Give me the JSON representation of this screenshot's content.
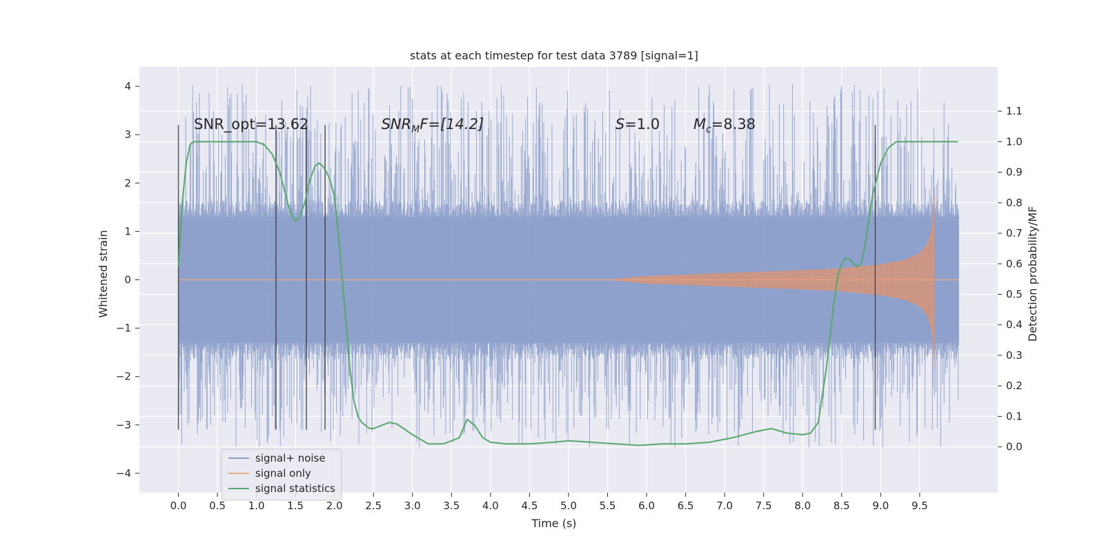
{
  "chart_data": {
    "type": "line",
    "title": "stats at each timestep for test data 3789 [signal=1]",
    "xlabel": "Time (s)",
    "ylabel": "Whitened strain",
    "y2label": "Detection probability/MF",
    "xlim": [
      -0.5,
      10.5
    ],
    "ylim": [
      -4.4,
      4.4
    ],
    "y2lim": [
      -0.15,
      1.245
    ],
    "x_ticks": [
      0.0,
      0.5,
      1.0,
      1.5,
      2.0,
      2.5,
      3.0,
      3.5,
      4.0,
      4.5,
      5.0,
      5.5,
      6.0,
      6.5,
      7.0,
      7.5,
      8.0,
      8.5,
      9.0,
      9.5
    ],
    "x_tick_labels": [
      "0.0",
      "0.5",
      "1.0",
      "1.5",
      "2.0",
      "2.5",
      "3.0",
      "3.5",
      "4.0",
      "4.5",
      "5.0",
      "5.5",
      "6.0",
      "6.5",
      "7.0",
      "7.5",
      "8.0",
      "8.5",
      "9.0",
      "9.5"
    ],
    "y_ticks": [
      4,
      3,
      2,
      1,
      0,
      -1,
      -2,
      -3,
      -4
    ],
    "y_tick_labels": [
      "4",
      "3",
      "2",
      "1",
      "0",
      "−1",
      "−2",
      "−3",
      "−4"
    ],
    "y2_ticks": [
      1.1,
      1.0,
      0.9,
      0.8,
      0.7,
      0.6,
      0.5,
      0.4,
      0.3,
      0.2,
      0.1,
      0.0
    ],
    "y2_tick_labels": [
      "1.1",
      "1.0",
      "0.9",
      "0.8",
      "0.7",
      "0.6",
      "0.5",
      "0.4",
      "0.3",
      "0.2",
      "0.1",
      "0.0"
    ],
    "grid": true,
    "legend_position": "bottom-left",
    "colors": {
      "noise": "#8da0cb",
      "signal": "#dd8452",
      "stats": "#55a868",
      "vline": "#3a3a3a",
      "plot_bg": "#eaeaf2",
      "grid": "#ffffff"
    },
    "series": [
      {
        "name": "signal+ noise",
        "axis": "left",
        "style": "noise-band",
        "x_range": [
          0.0,
          10.0
        ],
        "core_amplitude": 1.3,
        "peak_max": 4.05,
        "trough_min": -3.5
      },
      {
        "name": "signal only",
        "axis": "left",
        "style": "chirp",
        "envelope": {
          "x": [
            0.0,
            5.5,
            6.0,
            6.5,
            7.0,
            7.5,
            8.0,
            8.5,
            9.0,
            9.3,
            9.5,
            9.6,
            9.66,
            9.69
          ],
          "amp": [
            0.0,
            0.0,
            0.08,
            0.11,
            0.14,
            0.17,
            0.2,
            0.24,
            0.32,
            0.41,
            0.55,
            0.75,
            1.1,
            1.9
          ]
        },
        "merger_x": 9.69,
        "x_end": 10.0
      },
      {
        "name": "signal statistics",
        "axis": "right",
        "style": "line",
        "x": [
          0.0,
          0.05,
          0.1,
          0.15,
          0.2,
          0.3,
          0.5,
          0.7,
          0.9,
          1.0,
          1.1,
          1.2,
          1.3,
          1.4,
          1.45,
          1.5,
          1.55,
          1.62,
          1.68,
          1.75,
          1.8,
          1.85,
          1.9,
          1.95,
          2.0,
          2.05,
          2.1,
          2.15,
          2.2,
          2.25,
          2.3,
          2.35,
          2.4,
          2.45,
          2.5,
          2.6,
          2.7,
          2.8,
          3.0,
          3.2,
          3.4,
          3.6,
          3.7,
          3.8,
          3.9,
          4.0,
          4.2,
          4.5,
          4.8,
          5.0,
          5.3,
          5.6,
          5.9,
          6.2,
          6.5,
          6.8,
          7.1,
          7.4,
          7.6,
          7.8,
          8.0,
          8.1,
          8.2,
          8.3,
          8.4,
          8.45,
          8.5,
          8.55,
          8.6,
          8.65,
          8.7,
          8.75,
          8.8,
          8.85,
          8.9,
          9.0,
          9.1,
          9.2,
          9.3,
          9.5,
          9.7,
          9.9,
          9.99
        ],
        "y": [
          0.59,
          0.8,
          0.93,
          0.99,
          1.0,
          1.0,
          1.0,
          1.0,
          1.0,
          1.0,
          0.99,
          0.96,
          0.9,
          0.8,
          0.76,
          0.74,
          0.75,
          0.8,
          0.87,
          0.92,
          0.93,
          0.92,
          0.9,
          0.87,
          0.82,
          0.7,
          0.55,
          0.4,
          0.25,
          0.15,
          0.1,
          0.08,
          0.07,
          0.06,
          0.06,
          0.07,
          0.08,
          0.075,
          0.04,
          0.01,
          0.01,
          0.03,
          0.09,
          0.07,
          0.03,
          0.015,
          0.01,
          0.01,
          0.015,
          0.02,
          0.015,
          0.01,
          0.005,
          0.01,
          0.01,
          0.015,
          0.03,
          0.05,
          0.06,
          0.045,
          0.04,
          0.045,
          0.08,
          0.25,
          0.47,
          0.56,
          0.6,
          0.62,
          0.615,
          0.6,
          0.59,
          0.6,
          0.66,
          0.75,
          0.83,
          0.93,
          0.98,
          1.0,
          1.0,
          1.0,
          1.0,
          1.0,
          1.0
        ]
      }
    ],
    "vertical_lines": [
      0.0,
      1.25,
      1.64,
      1.88,
      8.93
    ],
    "vertical_line_range": [
      -3.1,
      3.2
    ],
    "annotations": [
      {
        "text": "SNR_opt=13.62",
        "x": 0.2,
        "y": 3.2
      },
      {
        "main": "SNR",
        "sub": "M",
        "rest": "F=[14.2]",
        "x": 2.6,
        "y": 3.2
      },
      {
        "main": "S",
        "rest": "=1.0",
        "x": 5.6,
        "y": 3.2
      },
      {
        "main": "M",
        "sub": "c",
        "rest": "=8.38",
        "x": 6.6,
        "y": 3.2
      }
    ]
  }
}
